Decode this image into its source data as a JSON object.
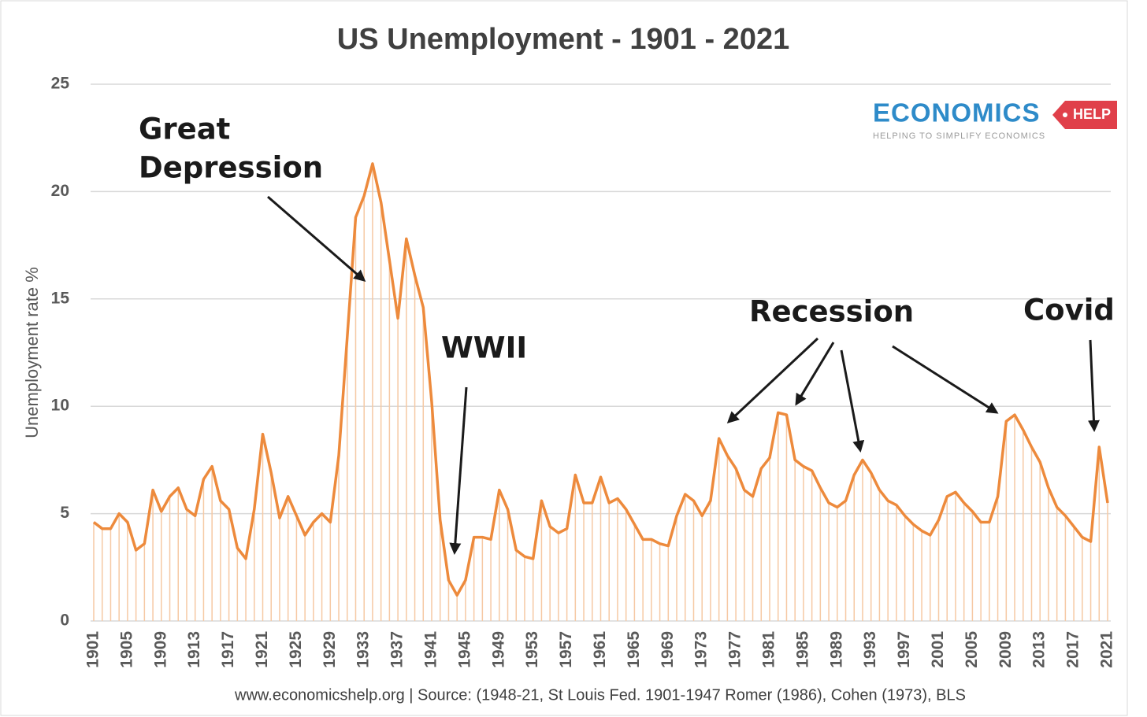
{
  "chart_data": {
    "type": "line",
    "title": "US Unemployment - 1901 - 2021",
    "y_label": "Unemployment  rate %",
    "source": "www.economicshelp.org  | Source: (1948-21, St Louis Fed. 1901-1947 Romer (1986), Cohen (1973), BLS",
    "logo": {
      "name": "ECONOMICS",
      "tag": "HELP",
      "tagline": "HELPING TO SIMPLIFY ECONOMICS"
    },
    "annotations": {
      "great_depression": [
        "Great",
        "Depression"
      ],
      "wwii": "WWII",
      "recession": "Recession",
      "covid": "Covid"
    },
    "color": "#ed8a3c",
    "drop_color": "#f6c9a4",
    "grid": true,
    "x": [
      1901,
      1902,
      1903,
      1904,
      1905,
      1906,
      1907,
      1908,
      1909,
      1910,
      1911,
      1912,
      1913,
      1914,
      1915,
      1916,
      1917,
      1918,
      1919,
      1920,
      1921,
      1922,
      1923,
      1924,
      1925,
      1926,
      1927,
      1928,
      1929,
      1930,
      1931,
      1932,
      1933,
      1934,
      1935,
      1936,
      1937,
      1938,
      1939,
      1940,
      1941,
      1942,
      1943,
      1944,
      1945,
      1946,
      1947,
      1948,
      1949,
      1950,
      1951,
      1952,
      1953,
      1954,
      1955,
      1956,
      1957,
      1958,
      1959,
      1960,
      1961,
      1962,
      1963,
      1964,
      1965,
      1966,
      1967,
      1968,
      1969,
      1970,
      1971,
      1972,
      1973,
      1974,
      1975,
      1976,
      1977,
      1978,
      1979,
      1980,
      1981,
      1982,
      1983,
      1984,
      1985,
      1986,
      1987,
      1988,
      1989,
      1990,
      1991,
      1992,
      1993,
      1994,
      1995,
      1996,
      1997,
      1998,
      1999,
      2000,
      2001,
      2002,
      2003,
      2004,
      2005,
      2006,
      2007,
      2008,
      2009,
      2010,
      2011,
      2012,
      2013,
      2014,
      2015,
      2016,
      2017,
      2018,
      2019,
      2020,
      2021
    ],
    "values": [
      4.6,
      4.3,
      4.3,
      5.0,
      4.6,
      3.3,
      3.6,
      6.1,
      5.1,
      5.8,
      6.2,
      5.2,
      4.9,
      6.6,
      7.2,
      5.6,
      5.2,
      3.4,
      2.9,
      5.2,
      8.7,
      6.9,
      4.8,
      5.8,
      4.9,
      4.0,
      4.6,
      5.0,
      4.6,
      7.7,
      13.2,
      18.8,
      19.8,
      21.3,
      19.5,
      16.8,
      14.1,
      17.8,
      16.1,
      14.6,
      10.2,
      4.7,
      1.9,
      1.2,
      1.9,
      3.9,
      3.9,
      3.8,
      6.1,
      5.2,
      3.3,
      3.0,
      2.9,
      5.6,
      4.4,
      4.1,
      4.3,
      6.8,
      5.5,
      5.5,
      6.7,
      5.5,
      5.7,
      5.2,
      4.5,
      3.8,
      3.8,
      3.6,
      3.5,
      4.9,
      5.9,
      5.6,
      4.9,
      5.6,
      8.5,
      7.7,
      7.1,
      6.1,
      5.8,
      7.1,
      7.6,
      9.7,
      9.6,
      7.5,
      7.2,
      7.0,
      6.2,
      5.5,
      5.3,
      5.6,
      6.8,
      7.5,
      6.9,
      6.1,
      5.6,
      5.4,
      4.9,
      4.5,
      4.2,
      4.0,
      4.7,
      5.8,
      6.0,
      5.5,
      5.1,
      4.6,
      4.6,
      5.8,
      9.3,
      9.6,
      8.9,
      8.1,
      7.4,
      6.2,
      5.3,
      4.9,
      4.4,
      3.9,
      3.7,
      8.1,
      5.5
    ],
    "xlim": [
      1901,
      2021
    ],
    "xticks": [
      1901,
      1905,
      1909,
      1913,
      1917,
      1921,
      1925,
      1929,
      1933,
      1937,
      1941,
      1945,
      1949,
      1953,
      1957,
      1961,
      1965,
      1969,
      1973,
      1977,
      1981,
      1985,
      1989,
      1993,
      1997,
      2001,
      2005,
      2009,
      2013,
      2017,
      2021
    ],
    "ylim": [
      0,
      25
    ],
    "yticks": [
      0,
      5,
      10,
      15,
      20,
      25
    ]
  }
}
